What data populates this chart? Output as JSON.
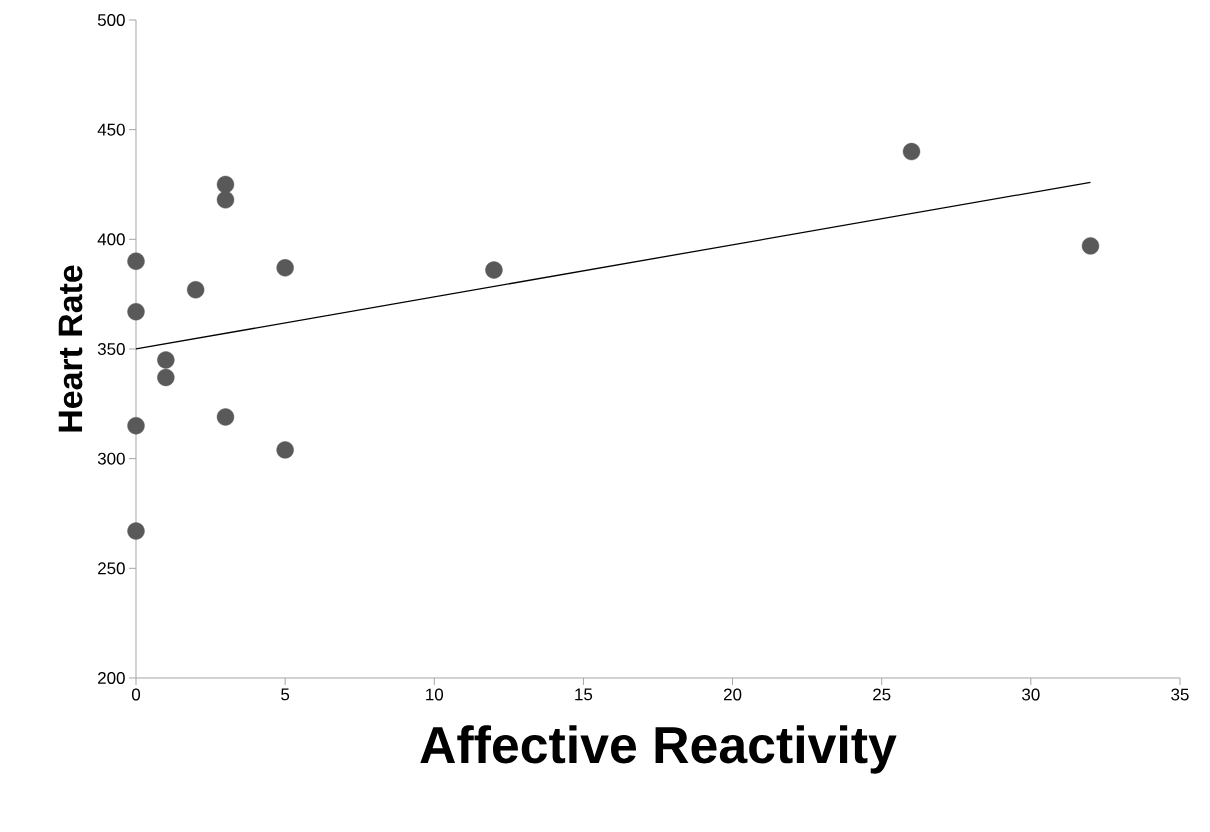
{
  "chart_data": {
    "type": "scatter",
    "xlabel": "Affective Reactivity",
    "ylabel": "Heart Rate",
    "xlim": [
      0,
      35
    ],
    "ylim": [
      200,
      500
    ],
    "xticks": [
      0,
      5,
      10,
      15,
      20,
      25,
      30,
      35
    ],
    "yticks": [
      200,
      250,
      300,
      350,
      400,
      450,
      500
    ],
    "grid": false,
    "series": [
      {
        "color": "#595959",
        "marker": "circle",
        "x": [
          0,
          0,
          0,
          0,
          1,
          1,
          2,
          3,
          3,
          3,
          5,
          5,
          12,
          26,
          32
        ],
        "values": [
          390,
          367,
          315,
          267,
          345,
          337,
          377,
          425,
          418,
          319,
          387,
          304,
          386,
          440,
          397
        ]
      },
      {
        "type": "line",
        "color": "#000000",
        "marker": "none",
        "x": [
          0,
          32
        ],
        "values": [
          350,
          426
        ]
      }
    ]
  }
}
